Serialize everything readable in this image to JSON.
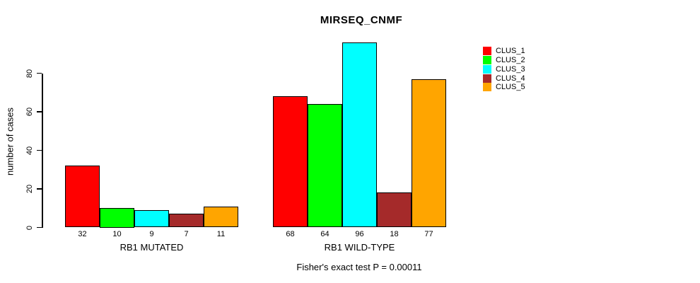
{
  "window": {
    "background_color": "#FFFFFF",
    "text_color": "#000000"
  },
  "chart_data": {
    "type": "bar",
    "title": "MIRSEQ_CNMF",
    "ylabel": "number of cases",
    "xlabel": "",
    "annotation": "Fisher's exact test P = 0.00011",
    "categories": [
      "RB1 MUTATED",
      "RB1 WILD-TYPE"
    ],
    "series": [
      {
        "name": "CLUS_1",
        "color": "#FF0000",
        "values": [
          32,
          68
        ]
      },
      {
        "name": "CLUS_2",
        "color": "#00FF00",
        "values": [
          10,
          64
        ]
      },
      {
        "name": "CLUS_3",
        "color": "#00FFFF",
        "values": [
          9,
          96
        ]
      },
      {
        "name": "CLUS_4",
        "color": "#A52A2A",
        "values": [
          7,
          18
        ]
      },
      {
        "name": "CLUS_5",
        "color": "#FFA500",
        "values": [
          11,
          77
        ]
      }
    ],
    "yticks": [
      0,
      20,
      40,
      60,
      80
    ],
    "ylim": [
      0,
      96
    ],
    "grid": false,
    "legend_position": "right",
    "bar_value_labels_shown": true,
    "bar_outline_color": "#000000"
  }
}
